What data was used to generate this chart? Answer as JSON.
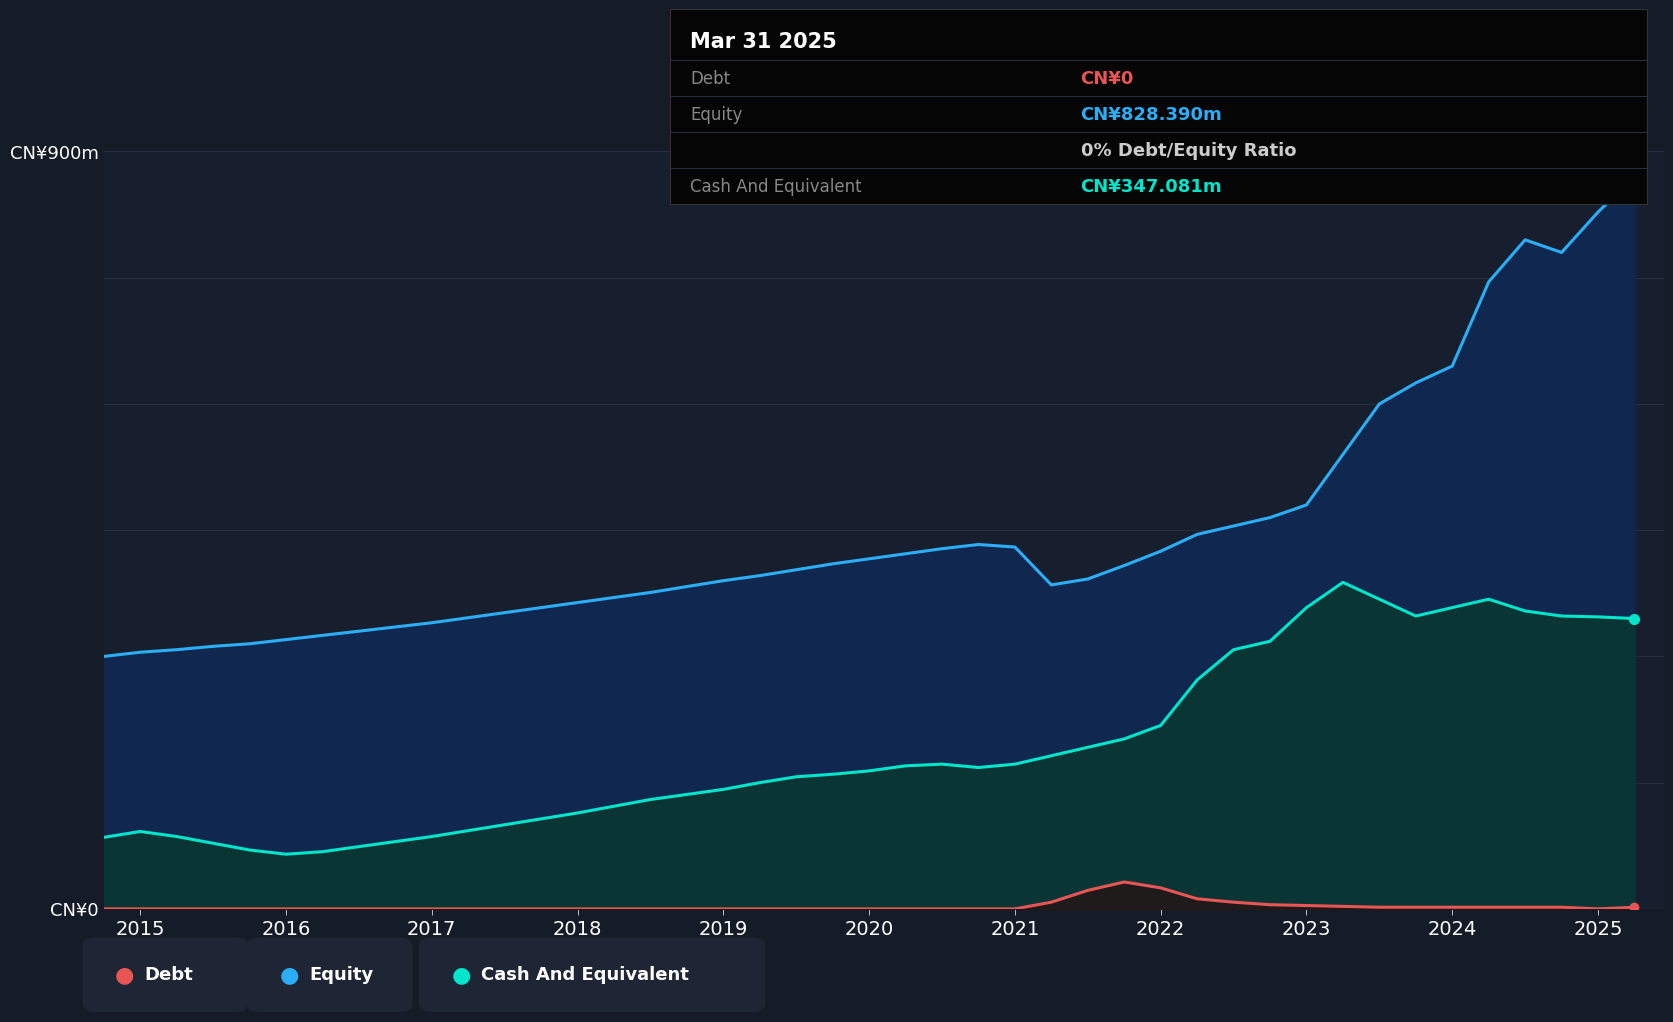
{
  "bg_color": "#151c28",
  "plot_bg_color": "#171f2e",
  "grid_color": "#252f40",
  "title_label": "CN¥900m",
  "zero_label": "CN¥0",
  "ylim": [
    0,
    900
  ],
  "xlim_start": 2014.75,
  "xlim_end": 2025.45,
  "xtick_years": [
    2015,
    2016,
    2017,
    2018,
    2019,
    2020,
    2021,
    2022,
    2023,
    2024,
    2025
  ],
  "equity_color": "#2baef5",
  "equity_fill_color": "#102850",
  "cash_color": "#00e5cc",
  "cash_fill_color": "#0a3535",
  "debt_color": "#e85555",
  "debt_fill_color": "#2a1010",
  "equity_data": {
    "years": [
      2014.75,
      2015.0,
      2015.25,
      2015.5,
      2015.75,
      2016.0,
      2016.25,
      2016.5,
      2016.75,
      2017.0,
      2017.25,
      2017.5,
      2017.75,
      2018.0,
      2018.25,
      2018.5,
      2018.75,
      2019.0,
      2019.25,
      2019.5,
      2019.75,
      2020.0,
      2020.25,
      2020.5,
      2020.75,
      2021.0,
      2021.25,
      2021.5,
      2021.75,
      2022.0,
      2022.25,
      2022.5,
      2022.75,
      2023.0,
      2023.25,
      2023.5,
      2023.75,
      2024.0,
      2024.25,
      2024.5,
      2024.75,
      2025.0,
      2025.25
    ],
    "values": [
      300,
      305,
      308,
      312,
      315,
      320,
      325,
      330,
      335,
      340,
      346,
      352,
      358,
      364,
      370,
      376,
      383,
      390,
      396,
      403,
      410,
      416,
      422,
      428,
      433,
      430,
      385,
      392,
      408,
      425,
      445,
      455,
      465,
      480,
      540,
      600,
      625,
      645,
      745,
      795,
      780,
      828,
      870
    ],
    "endpoint_marker": true
  },
  "cash_data": {
    "years": [
      2014.75,
      2015.0,
      2015.25,
      2015.5,
      2015.75,
      2016.0,
      2016.25,
      2016.5,
      2016.75,
      2017.0,
      2017.25,
      2017.5,
      2017.75,
      2018.0,
      2018.25,
      2018.5,
      2018.75,
      2019.0,
      2019.25,
      2019.5,
      2019.75,
      2020.0,
      2020.25,
      2020.5,
      2020.75,
      2021.0,
      2021.25,
      2021.5,
      2021.75,
      2022.0,
      2022.25,
      2022.5,
      2022.75,
      2023.0,
      2023.25,
      2023.5,
      2023.75,
      2024.0,
      2024.25,
      2024.5,
      2024.75,
      2025.0,
      2025.25
    ],
    "values": [
      85,
      92,
      86,
      78,
      70,
      65,
      68,
      74,
      80,
      86,
      93,
      100,
      107,
      114,
      122,
      130,
      136,
      142,
      150,
      157,
      160,
      164,
      170,
      172,
      168,
      172,
      182,
      192,
      202,
      218,
      272,
      308,
      318,
      358,
      388,
      368,
      348,
      358,
      368,
      354,
      348,
      347,
      345
    ],
    "endpoint_marker": true
  },
  "debt_data": {
    "years": [
      2014.75,
      2015.0,
      2015.25,
      2015.5,
      2015.75,
      2016.0,
      2016.25,
      2016.5,
      2016.75,
      2017.0,
      2017.25,
      2017.5,
      2017.75,
      2018.0,
      2018.25,
      2018.5,
      2018.75,
      2019.0,
      2019.25,
      2019.5,
      2019.75,
      2020.0,
      2020.25,
      2020.5,
      2020.75,
      2021.0,
      2021.25,
      2021.5,
      2021.75,
      2022.0,
      2022.25,
      2022.5,
      2022.75,
      2023.0,
      2023.25,
      2023.5,
      2023.75,
      2024.0,
      2024.25,
      2024.5,
      2024.75,
      2025.0,
      2025.25
    ],
    "values": [
      0,
      0,
      0,
      0,
      0,
      0,
      0,
      0,
      0,
      0,
      0,
      0,
      0,
      0,
      0,
      0,
      0,
      0,
      0,
      0,
      0,
      0,
      0,
      0,
      0,
      0,
      8,
      22,
      32,
      25,
      12,
      8,
      5,
      4,
      3,
      2,
      2,
      2,
      2,
      2,
      2,
      0,
      2
    ],
    "endpoint_marker": true
  },
  "tooltip": {
    "title": "Mar 31 2025",
    "rows": [
      {
        "label": "Debt",
        "value": "CN¥0",
        "value_color": "#e85555"
      },
      {
        "label": "Equity",
        "value": "CN¥828.390m",
        "value_color": "#2baef5"
      },
      {
        "label": "",
        "value": "0% Debt/Equity Ratio",
        "value_color": "#cccccc"
      },
      {
        "label": "Cash And Equivalent",
        "value": "CN¥347.081m",
        "value_color": "#00e5cc"
      }
    ],
    "bg_color": "#050505",
    "sep_color": "#2a3040"
  },
  "legend": [
    {
      "label": "Debt",
      "color": "#e85555"
    },
    {
      "label": "Equity",
      "color": "#2baef5"
    },
    {
      "label": "Cash And Equivalent",
      "color": "#00e5cc"
    }
  ],
  "legend_bg": "#1e2535",
  "text_color": "#ffffff",
  "axis_label_color": "#8899aa",
  "line_width": 2.2
}
